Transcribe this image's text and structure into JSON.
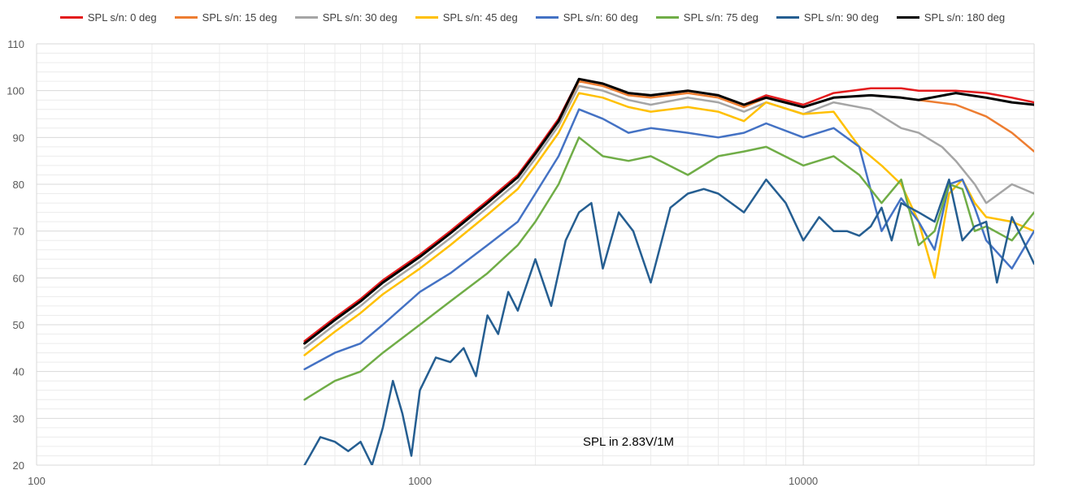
{
  "chart_data": {
    "type": "line",
    "x_scale": "log",
    "xlim": [
      100,
      40000
    ],
    "ylim": [
      20,
      110
    ],
    "x_ticks": [
      100,
      1000,
      10000
    ],
    "x_tick_labels": [
      "100",
      "1000",
      "10000"
    ],
    "y_ticks": [
      20,
      30,
      40,
      50,
      60,
      70,
      80,
      90,
      100,
      110
    ],
    "y_tick_labels": [
      "20",
      "30",
      "40",
      "50",
      "60",
      "70",
      "80",
      "90",
      "100",
      "110"
    ],
    "grid": true,
    "legend_position": "top",
    "annotation": "SPL in 2.83V/1M",
    "series": [
      {
        "name": "SPL s/n: 0 deg",
        "color": "#e31a1c",
        "x": [
          500,
          600,
          700,
          800,
          1000,
          1200,
          1500,
          1800,
          2000,
          2300,
          2600,
          3000,
          3500,
          4000,
          5000,
          6000,
          7000,
          8000,
          10000,
          12000,
          15000,
          18000,
          20000,
          25000,
          30000,
          35000,
          40000
        ],
        "y": [
          46.5,
          51.5,
          55.5,
          59.5,
          65,
          70,
          76.5,
          82,
          87,
          94,
          102.5,
          101.5,
          99.5,
          99,
          100,
          99,
          97,
          99,
          97,
          99.5,
          100.5,
          100.5,
          100,
          100,
          99.5,
          98.5,
          97.5
        ]
      },
      {
        "name": "SPL s/n: 15 deg",
        "color": "#ed7d31",
        "x": [
          500,
          600,
          700,
          800,
          1000,
          1200,
          1500,
          1800,
          2000,
          2300,
          2600,
          3000,
          3500,
          4000,
          5000,
          6000,
          7000,
          8000,
          10000,
          12000,
          15000,
          18000,
          20000,
          25000,
          30000,
          35000,
          40000
        ],
        "y": [
          46,
          51,
          55,
          59,
          64.5,
          69.5,
          76,
          81.5,
          86.5,
          93.5,
          102,
          101,
          99,
          98.5,
          99.5,
          98.5,
          96.5,
          98.5,
          96.5,
          98.5,
          99,
          98.5,
          98,
          97,
          94.5,
          91,
          87
        ]
      },
      {
        "name": "SPL s/n: 30 deg",
        "color": "#a5a5a5",
        "x": [
          500,
          600,
          700,
          800,
          1000,
          1200,
          1500,
          1800,
          2000,
          2300,
          2600,
          3000,
          3500,
          4000,
          5000,
          6000,
          7000,
          8000,
          10000,
          12000,
          15000,
          18000,
          20000,
          23000,
          25000,
          28000,
          30000,
          35000,
          40000
        ],
        "y": [
          45,
          50,
          54,
          58,
          63.5,
          68.5,
          75,
          80.5,
          85.5,
          92.5,
          101,
          100,
          98,
          97,
          98.5,
          97.5,
          95.5,
          97.5,
          95,
          97.5,
          96,
          92,
          91,
          88,
          85,
          80,
          76,
          80,
          78
        ]
      },
      {
        "name": "SPL s/n: 45 deg",
        "color": "#ffc000",
        "x": [
          500,
          600,
          700,
          800,
          1000,
          1200,
          1500,
          1800,
          2000,
          2300,
          2600,
          3000,
          3500,
          4000,
          5000,
          6000,
          7000,
          8000,
          10000,
          12000,
          14000,
          16000,
          18000,
          20000,
          22000,
          24000,
          26000,
          28000,
          30000,
          35000,
          40000
        ],
        "y": [
          43.5,
          48.5,
          52.5,
          56.5,
          62,
          67,
          73.5,
          79,
          84,
          91,
          99.5,
          98.5,
          96.5,
          95.5,
          96.5,
          95.5,
          93.5,
          97.5,
          95,
          95.5,
          88,
          84,
          80,
          72,
          60,
          78,
          81,
          76,
          73,
          72,
          70
        ]
      },
      {
        "name": "SPL s/n: 60 deg",
        "color": "#4472c4",
        "x": [
          500,
          600,
          700,
          800,
          1000,
          1200,
          1500,
          1800,
          2000,
          2300,
          2600,
          3000,
          3500,
          4000,
          5000,
          6000,
          7000,
          8000,
          10000,
          12000,
          14000,
          16000,
          18000,
          20000,
          22000,
          24000,
          26000,
          28000,
          30000,
          35000,
          40000
        ],
        "y": [
          40.5,
          44,
          46,
          50,
          57,
          61,
          67,
          72,
          78,
          86,
          96,
          94,
          91,
          92,
          91,
          90,
          91,
          93,
          90,
          92,
          88,
          70,
          77,
          72,
          66,
          80,
          81,
          75,
          68,
          62,
          70
        ]
      },
      {
        "name": "SPL s/n: 75 deg",
        "color": "#70ad47",
        "x": [
          500,
          600,
          700,
          800,
          1000,
          1200,
          1500,
          1800,
          2000,
          2300,
          2600,
          3000,
          3500,
          4000,
          5000,
          6000,
          7000,
          8000,
          10000,
          12000,
          14000,
          16000,
          18000,
          20000,
          22000,
          24000,
          26000,
          28000,
          30000,
          35000,
          40000
        ],
        "y": [
          34,
          38,
          40,
          44,
          50,
          55,
          61,
          67,
          72,
          80,
          90,
          86,
          85,
          86,
          82,
          86,
          87,
          88,
          84,
          86,
          82,
          76,
          81,
          67,
          70,
          80,
          79,
          70,
          71,
          68,
          74
        ]
      },
      {
        "name": "SPL s/n: 90 deg",
        "color": "#255e91",
        "x": [
          500,
          550,
          600,
          650,
          700,
          750,
          800,
          850,
          900,
          950,
          1000,
          1100,
          1200,
          1300,
          1400,
          1500,
          1600,
          1700,
          1800,
          2000,
          2200,
          2400,
          2600,
          2800,
          3000,
          3300,
          3600,
          4000,
          4500,
          5000,
          5500,
          6000,
          7000,
          8000,
          9000,
          10000,
          11000,
          12000,
          13000,
          14000,
          15000,
          16000,
          17000,
          18000,
          20000,
          22000,
          24000,
          26000,
          28000,
          30000,
          32000,
          35000,
          40000
        ],
        "y": [
          20,
          26,
          25,
          23,
          25,
          20,
          28,
          38,
          31,
          22,
          36,
          43,
          42,
          45,
          39,
          52,
          48,
          57,
          53,
          64,
          54,
          68,
          74,
          76,
          62,
          74,
          70,
          59,
          75,
          78,
          79,
          78,
          74,
          81,
          76,
          68,
          73,
          70,
          70,
          69,
          71,
          75,
          68,
          76,
          74,
          72,
          81,
          68,
          71,
          72,
          59,
          73,
          63
        ]
      },
      {
        "name": "SPL s/n: 180 deg",
        "color": "#000000",
        "x": [
          500,
          600,
          700,
          800,
          1000,
          1200,
          1500,
          1800,
          2000,
          2300,
          2600,
          3000,
          3500,
          4000,
          5000,
          6000,
          7000,
          8000,
          10000,
          12000,
          15000,
          18000,
          20000,
          25000,
          30000,
          35000,
          40000
        ],
        "y": [
          46,
          51,
          55,
          59,
          64.5,
          69.5,
          76,
          81.5,
          86.5,
          93.5,
          102.5,
          101.5,
          99.5,
          99,
          100,
          99,
          97,
          98.5,
          96.5,
          98.5,
          99,
          98.5,
          98,
          99.5,
          98.5,
          97.5,
          97
        ]
      }
    ]
  }
}
